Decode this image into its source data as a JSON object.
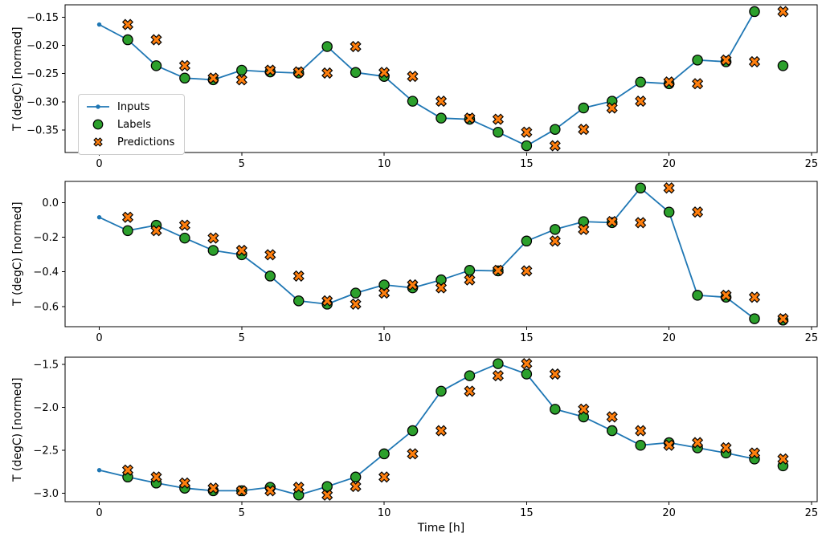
{
  "figure": {
    "background": "#ffffff",
    "text_color": "#000000",
    "legend": {
      "items": [
        {
          "label": "Inputs",
          "marker": "line-with-dot",
          "color": "#1f77b4"
        },
        {
          "label": "Labels",
          "marker": "filled-circle",
          "color": "#2ca02c",
          "edge_color": "#000000"
        },
        {
          "label": "Predictions",
          "marker": "filled-x",
          "color": "#ff7f0e",
          "edge_color": "#000000"
        }
      ]
    }
  },
  "chart_data": [
    {
      "type": "line",
      "title": "",
      "xlabel": "",
      "ylabel": "T (degC) [normed]",
      "xlim": [
        -1.2,
        25.2
      ],
      "ylim": [
        -0.39,
        -0.128
      ],
      "grid": false,
      "legend_position": "center-left-of-first-subplot",
      "xticks": [
        0,
        5,
        10,
        15,
        20,
        25
      ],
      "xtick_labels": [
        "0",
        "5",
        "10",
        "15",
        "20",
        "25"
      ],
      "yticks": [
        -0.15,
        -0.2,
        -0.25,
        -0.3,
        -0.35
      ],
      "ytick_labels": [
        "−0.15",
        "−0.20",
        "−0.25",
        "−0.30",
        "−0.35"
      ],
      "series": [
        {
          "name": "Inputs",
          "style": "line+dot-markers",
          "color": "#1f77b4",
          "x": [
            0,
            1,
            2,
            3,
            4,
            5,
            6,
            7,
            8,
            9,
            10,
            11,
            12,
            13,
            14,
            15,
            16,
            17,
            18,
            19,
            20,
            21,
            22,
            23
          ],
          "y": [
            -0.163,
            -0.19,
            -0.236,
            -0.258,
            -0.261,
            -0.244,
            -0.247,
            -0.249,
            -0.202,
            -0.248,
            -0.255,
            -0.299,
            -0.329,
            -0.331,
            -0.354,
            -0.378,
            -0.349,
            -0.311,
            -0.299,
            -0.265,
            -0.268,
            -0.226,
            -0.229,
            -0.14
          ]
        },
        {
          "name": "Labels",
          "style": "scatter-circle",
          "color": "#2ca02c",
          "edge_color": "#000000",
          "x": [
            1,
            2,
            3,
            4,
            5,
            6,
            7,
            8,
            9,
            10,
            11,
            12,
            13,
            14,
            15,
            16,
            17,
            18,
            19,
            20,
            21,
            22,
            23,
            24
          ],
          "y": [
            -0.19,
            -0.236,
            -0.258,
            -0.261,
            -0.244,
            -0.247,
            -0.249,
            -0.202,
            -0.248,
            -0.255,
            -0.299,
            -0.329,
            -0.331,
            -0.354,
            -0.378,
            -0.349,
            -0.311,
            -0.299,
            -0.265,
            -0.268,
            -0.226,
            -0.229,
            -0.14,
            -0.236
          ]
        },
        {
          "name": "Predictions",
          "style": "scatter-x",
          "color": "#ff7f0e",
          "edge_color": "#000000",
          "x": [
            1,
            2,
            3,
            4,
            5,
            6,
            7,
            8,
            9,
            10,
            11,
            12,
            13,
            14,
            15,
            16,
            17,
            18,
            19,
            20,
            21,
            22,
            23,
            24
          ],
          "y": [
            -0.163,
            -0.19,
            -0.236,
            -0.258,
            -0.261,
            -0.244,
            -0.247,
            -0.249,
            -0.202,
            -0.248,
            -0.255,
            -0.299,
            -0.329,
            -0.331,
            -0.354,
            -0.378,
            -0.349,
            -0.311,
            -0.299,
            -0.265,
            -0.268,
            -0.226,
            -0.229,
            -0.14
          ]
        }
      ]
    },
    {
      "type": "line",
      "title": "",
      "xlabel": "",
      "ylabel": "T (degC) [normed]",
      "xlim": [
        -1.2,
        25.2
      ],
      "ylim": [
        -0.716,
        0.122
      ],
      "grid": false,
      "xticks": [
        0,
        5,
        10,
        15,
        20,
        25
      ],
      "xtick_labels": [
        "0",
        "5",
        "10",
        "15",
        "20",
        "25"
      ],
      "yticks": [
        0.0,
        -0.2,
        -0.4,
        -0.6
      ],
      "ytick_labels": [
        "0.0",
        "−0.2",
        "−0.4",
        "−0.6"
      ],
      "series": [
        {
          "name": "Inputs",
          "style": "line+dot-markers",
          "color": "#1f77b4",
          "x": [
            0,
            1,
            2,
            3,
            4,
            5,
            6,
            7,
            8,
            9,
            10,
            11,
            12,
            13,
            14,
            15,
            16,
            17,
            18,
            19,
            20,
            21,
            22,
            23
          ],
          "y": [
            -0.085,
            -0.162,
            -0.131,
            -0.205,
            -0.276,
            -0.301,
            -0.424,
            -0.567,
            -0.586,
            -0.522,
            -0.475,
            -0.492,
            -0.446,
            -0.391,
            -0.394,
            -0.222,
            -0.155,
            -0.11,
            -0.116,
            0.084,
            -0.055,
            -0.535,
            -0.546,
            -0.67
          ]
        },
        {
          "name": "Labels",
          "style": "scatter-circle",
          "color": "#2ca02c",
          "edge_color": "#000000",
          "x": [
            1,
            2,
            3,
            4,
            5,
            6,
            7,
            8,
            9,
            10,
            11,
            12,
            13,
            14,
            15,
            16,
            17,
            18,
            19,
            20,
            21,
            22,
            23,
            24
          ],
          "y": [
            -0.162,
            -0.131,
            -0.205,
            -0.276,
            -0.301,
            -0.424,
            -0.567,
            -0.586,
            -0.522,
            -0.475,
            -0.492,
            -0.446,
            -0.391,
            -0.394,
            -0.222,
            -0.155,
            -0.11,
            -0.116,
            0.084,
            -0.055,
            -0.535,
            -0.546,
            -0.67,
            -0.678
          ]
        },
        {
          "name": "Predictions",
          "style": "scatter-x",
          "color": "#ff7f0e",
          "edge_color": "#000000",
          "x": [
            1,
            2,
            3,
            4,
            5,
            6,
            7,
            8,
            9,
            10,
            11,
            12,
            13,
            14,
            15,
            16,
            17,
            18,
            19,
            20,
            21,
            22,
            23,
            24
          ],
          "y": [
            -0.085,
            -0.162,
            -0.131,
            -0.205,
            -0.276,
            -0.301,
            -0.424,
            -0.567,
            -0.586,
            -0.522,
            -0.475,
            -0.492,
            -0.446,
            -0.391,
            -0.394,
            -0.222,
            -0.155,
            -0.11,
            -0.116,
            0.084,
            -0.055,
            -0.535,
            -0.546,
            -0.67
          ]
        }
      ]
    },
    {
      "type": "line",
      "title": "",
      "xlabel": "Time [h]",
      "ylabel": "T (degC) [normed]",
      "xlim": [
        -1.2,
        25.2
      ],
      "ylim": [
        -3.097,
        -1.414
      ],
      "grid": false,
      "xticks": [
        0,
        5,
        10,
        15,
        20,
        25
      ],
      "xtick_labels": [
        "0",
        "5",
        "10",
        "15",
        "20",
        "25"
      ],
      "yticks": [
        -1.5,
        -2.0,
        -2.5,
        -3.0
      ],
      "ytick_labels": [
        "−1.5",
        "−2.0",
        "−2.5",
        "−3.0"
      ],
      "series": [
        {
          "name": "Inputs",
          "style": "line+dot-markers",
          "color": "#1f77b4",
          "x": [
            0,
            1,
            2,
            3,
            4,
            5,
            6,
            7,
            8,
            9,
            10,
            11,
            12,
            13,
            14,
            15,
            16,
            17,
            18,
            19,
            20,
            21,
            22,
            23
          ],
          "y": [
            -2.73,
            -2.81,
            -2.88,
            -2.94,
            -2.97,
            -2.97,
            -2.93,
            -3.02,
            -2.92,
            -2.81,
            -2.54,
            -2.27,
            -1.81,
            -1.63,
            -1.49,
            -1.61,
            -2.02,
            -2.11,
            -2.27,
            -2.44,
            -2.41,
            -2.47,
            -2.53,
            -2.6
          ]
        },
        {
          "name": "Labels",
          "style": "scatter-circle",
          "color": "#2ca02c",
          "edge_color": "#000000",
          "x": [
            1,
            2,
            3,
            4,
            5,
            6,
            7,
            8,
            9,
            10,
            11,
            12,
            13,
            14,
            15,
            16,
            17,
            18,
            19,
            20,
            21,
            22,
            23,
            24
          ],
          "y": [
            -2.81,
            -2.88,
            -2.94,
            -2.97,
            -2.97,
            -2.93,
            -3.02,
            -2.92,
            -2.81,
            -2.54,
            -2.27,
            -1.81,
            -1.63,
            -1.49,
            -1.61,
            -2.02,
            -2.11,
            -2.27,
            -2.44,
            -2.41,
            -2.47,
            -2.53,
            -2.6,
            -2.68
          ]
        },
        {
          "name": "Predictions",
          "style": "scatter-x",
          "color": "#ff7f0e",
          "edge_color": "#000000",
          "x": [
            1,
            2,
            3,
            4,
            5,
            6,
            7,
            8,
            9,
            10,
            11,
            12,
            13,
            14,
            15,
            16,
            17,
            18,
            19,
            20,
            21,
            22,
            23,
            24
          ],
          "y": [
            -2.73,
            -2.81,
            -2.88,
            -2.94,
            -2.97,
            -2.97,
            -2.93,
            -3.02,
            -2.92,
            -2.81,
            -2.54,
            -2.27,
            -1.81,
            -1.63,
            -1.49,
            -1.61,
            -2.02,
            -2.11,
            -2.27,
            -2.44,
            -2.41,
            -2.47,
            -2.53,
            -2.6
          ]
        }
      ]
    }
  ]
}
